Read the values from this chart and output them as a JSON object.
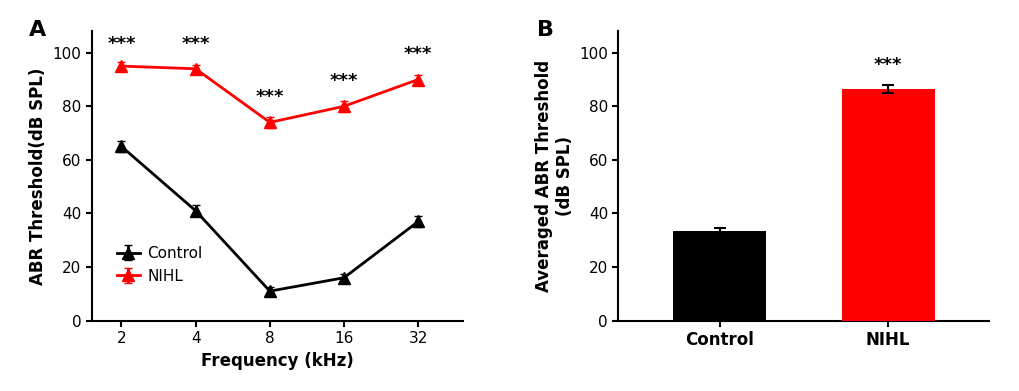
{
  "panel_A": {
    "freq_labels": [
      "2",
      "4",
      "8",
      "16",
      "32"
    ],
    "x_positions": [
      0,
      1,
      2,
      3,
      4
    ],
    "control_means": [
      65,
      41,
      11,
      16,
      37
    ],
    "control_se": [
      2,
      2,
      1.5,
      1.5,
      2
    ],
    "nihl_means": [
      95,
      94,
      74,
      80,
      90
    ],
    "nihl_se": [
      1.5,
      1.5,
      2,
      2,
      1.5
    ],
    "control_color": "#000000",
    "nihl_color": "#ff0000",
    "ylabel": "ABR Threshold(dB SPL)",
    "xlabel": "Frequency (kHz)",
    "ylim": [
      0,
      108
    ],
    "yticks": [
      0,
      20,
      40,
      60,
      80,
      100
    ],
    "sig_y": [
      100,
      100,
      80,
      86,
      96
    ],
    "panel_label": "A",
    "xlim": [
      -0.4,
      4.6
    ]
  },
  "panel_B": {
    "categories": [
      "Control",
      "NIHL"
    ],
    "means": [
      33.5,
      86.5
    ],
    "se": [
      1.2,
      1.5
    ],
    "bar_colors": [
      "#000000",
      "#ff0000"
    ],
    "ylabel": "Averaged ABR Threshold\n(dB SPL)",
    "ylim": [
      0,
      108
    ],
    "yticks": [
      0,
      20,
      40,
      60,
      80,
      100
    ],
    "sig_y": 92,
    "panel_label": "B",
    "xlim": [
      -0.6,
      1.6
    ]
  },
  "marker_size": 8,
  "line_width": 2,
  "tick_font_size": 11,
  "label_font_size": 12,
  "sig_font_size": 13,
  "panel_label_size": 16
}
